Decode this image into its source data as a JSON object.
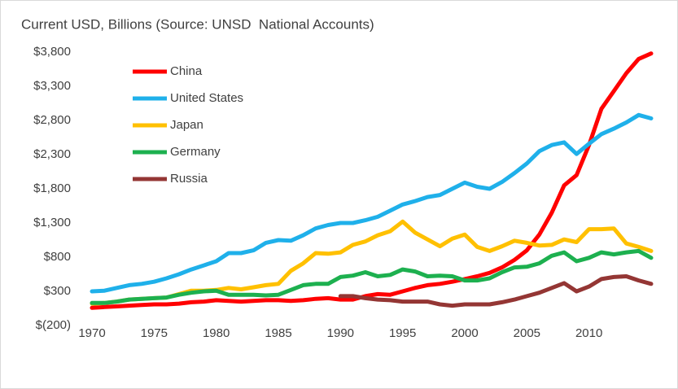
{
  "chart_data": {
    "type": "line",
    "title": "Current USD, Billions (Source: UNSD  National Accounts)",
    "x": [
      1970,
      1971,
      1972,
      1973,
      1974,
      1975,
      1976,
      1977,
      1978,
      1979,
      1980,
      1981,
      1982,
      1983,
      1984,
      1985,
      1986,
      1987,
      1988,
      1989,
      1990,
      1991,
      1992,
      1993,
      1994,
      1995,
      1996,
      1997,
      1998,
      1999,
      2000,
      2001,
      2002,
      2003,
      2004,
      2005,
      2006,
      2007,
      2008,
      2009,
      2010,
      2011,
      2012,
      2013,
      2014,
      2015
    ],
    "xlim": [
      1970,
      2015
    ],
    "xticks": [
      1970,
      1975,
      1980,
      1985,
      1990,
      1995,
      2000,
      2005,
      2010
    ],
    "ylim": [
      -200,
      3800
    ],
    "yticks": [
      {
        "value": -200,
        "label": "$(200)"
      },
      {
        "value": 300,
        "label": "$300"
      },
      {
        "value": 800,
        "label": "$800"
      },
      {
        "value": 1300,
        "label": "$1,300"
      },
      {
        "value": 1800,
        "label": "$1,800"
      },
      {
        "value": 2300,
        "label": "$2,300"
      },
      {
        "value": 2800,
        "label": "$2,800"
      },
      {
        "value": 3300,
        "label": "$3,300"
      },
      {
        "value": 3800,
        "label": "$3,800"
      }
    ],
    "grid": false,
    "legend": "upper left",
    "series": [
      {
        "name": "China",
        "color": "#ff0000",
        "values": [
          60,
          70,
          80,
          90,
          100,
          110,
          110,
          120,
          140,
          150,
          170,
          160,
          150,
          160,
          170,
          170,
          160,
          170,
          190,
          200,
          180,
          180,
          230,
          260,
          250,
          300,
          350,
          390,
          410,
          440,
          480,
          520,
          570,
          650,
          760,
          900,
          1130,
          1450,
          1850,
          2000,
          2440,
          2970,
          3230,
          3490,
          3700,
          3780
        ]
      },
      {
        "name": "United States",
        "color": "#1fb0ea",
        "values": [
          300,
          310,
          350,
          390,
          410,
          440,
          490,
          550,
          620,
          680,
          740,
          860,
          860,
          900,
          1010,
          1050,
          1040,
          1120,
          1220,
          1270,
          1300,
          1300,
          1340,
          1390,
          1480,
          1570,
          1620,
          1680,
          1710,
          1800,
          1890,
          1830,
          1800,
          1900,
          2030,
          2170,
          2350,
          2440,
          2480,
          2310,
          2460,
          2600,
          2680,
          2770,
          2880,
          2830
        ]
      },
      {
        "name": "Japan",
        "color": "#ffc000",
        "values": [
          120,
          130,
          150,
          180,
          190,
          200,
          210,
          260,
          310,
          310,
          320,
          350,
          330,
          360,
          390,
          410,
          600,
          710,
          860,
          850,
          870,
          980,
          1030,
          1120,
          1180,
          1320,
          1160,
          1060,
          960,
          1070,
          1130,
          950,
          890,
          960,
          1040,
          1010,
          970,
          980,
          1060,
          1020,
          1210,
          1210,
          1220,
          1000,
          950,
          890
        ]
      },
      {
        "name": "Germany",
        "color": "#1db04f",
        "values": [
          130,
          130,
          150,
          180,
          190,
          200,
          210,
          250,
          280,
          300,
          310,
          250,
          250,
          250,
          240,
          250,
          320,
          390,
          410,
          410,
          510,
          530,
          580,
          520,
          540,
          620,
          590,
          520,
          530,
          520,
          460,
          460,
          490,
          580,
          650,
          660,
          710,
          820,
          870,
          740,
          790,
          870,
          840,
          870,
          890,
          790
        ]
      },
      {
        "name": "Russia",
        "color": "#943634",
        "values": [
          null,
          null,
          null,
          null,
          null,
          null,
          null,
          null,
          null,
          null,
          null,
          null,
          null,
          null,
          null,
          null,
          null,
          null,
          null,
          null,
          230,
          230,
          200,
          180,
          170,
          150,
          150,
          150,
          110,
          90,
          110,
          110,
          110,
          140,
          180,
          230,
          280,
          350,
          420,
          300,
          370,
          480,
          510,
          520,
          460,
          410
        ]
      }
    ]
  }
}
